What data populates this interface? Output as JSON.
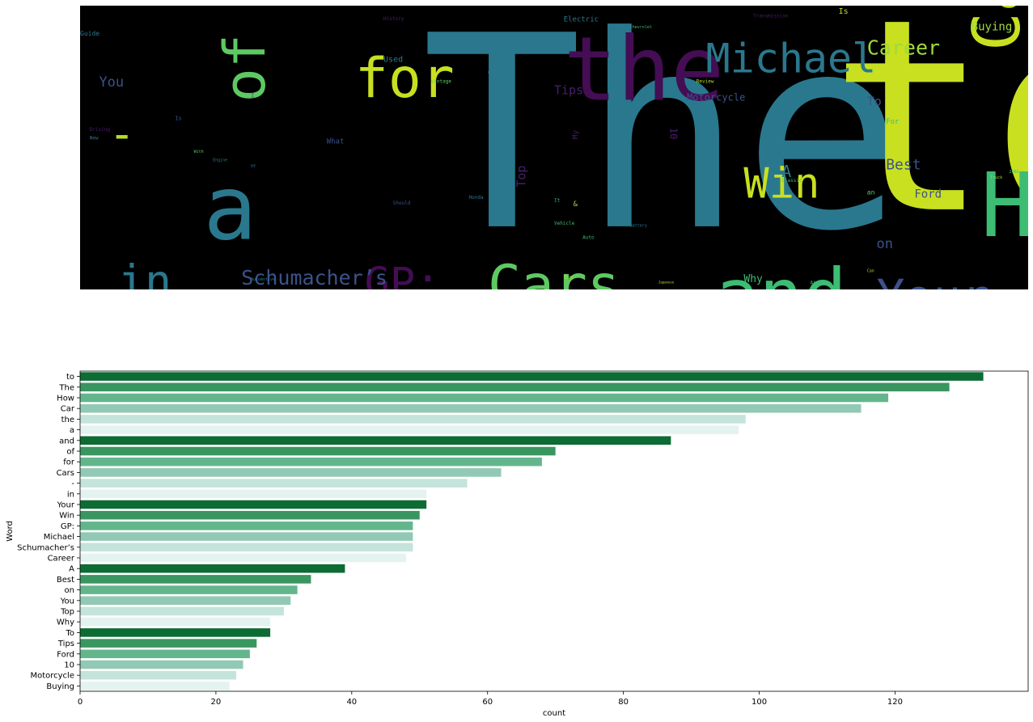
{
  "chart_data": [
    {
      "type": "wordcloud",
      "background": "#000000",
      "palette": "viridis",
      "words": [
        {
          "text": "The",
          "x": 36,
          "y": 8,
          "size": 330,
          "rotate": 0,
          "color": "#2a788e"
        },
        {
          "text": "to",
          "x": 79,
          "y": 2,
          "size": 330,
          "rotate": 0,
          "color": "#c8e020"
        },
        {
          "text": "How",
          "x": 95,
          "y": 58,
          "size": 110,
          "rotate": 0,
          "color": "#3dbc74"
        },
        {
          "text": "Car",
          "x": 94,
          "y": 16,
          "size": 80,
          "rotate": -90,
          "color": "#c8e020"
        },
        {
          "text": "the",
          "x": 51,
          "y": 10,
          "size": 110,
          "rotate": 0,
          "color": "#440d54"
        },
        {
          "text": "a",
          "x": 13,
          "y": 59,
          "size": 110,
          "rotate": 0,
          "color": "#2a788e"
        },
        {
          "text": "and",
          "x": 67,
          "y": 92,
          "size": 90,
          "rotate": 0,
          "color": "#3dbc74"
        },
        {
          "text": "of",
          "x": 15,
          "y": 34,
          "size": 70,
          "rotate": -90,
          "color": "#5ec962"
        },
        {
          "text": "for",
          "x": 29,
          "y": 18,
          "size": 68,
          "rotate": 0,
          "color": "#c8e020"
        },
        {
          "text": "Cars",
          "x": 43,
          "y": 91,
          "size": 68,
          "rotate": 0,
          "color": "#5ec962"
        },
        {
          "text": "-",
          "x": 3,
          "y": 39,
          "size": 55,
          "rotate": 0,
          "color": "#b5de2b"
        },
        {
          "text": "in",
          "x": 4,
          "y": 91,
          "size": 55,
          "rotate": 0,
          "color": "#2a788e"
        },
        {
          "text": "Your",
          "x": 84,
          "y": 96,
          "size": 58,
          "rotate": 0,
          "color": "#3b528b"
        },
        {
          "text": "Win",
          "x": 70,
          "y": 57,
          "size": 52,
          "rotate": 0,
          "color": "#c8e020"
        },
        {
          "text": "GP:",
          "x": 30,
          "y": 92,
          "size": 52,
          "rotate": 0,
          "color": "#440d54"
        },
        {
          "text": "Michael",
          "x": 66,
          "y": 13,
          "size": 50,
          "rotate": 0,
          "color": "#2a788e"
        },
        {
          "text": "Schumacher’s",
          "x": 17,
          "y": 93,
          "size": 25,
          "rotate": 0,
          "color": "#3b528b"
        },
        {
          "text": "Career",
          "x": 83,
          "y": 12,
          "size": 25,
          "rotate": 0,
          "color": "#a0da39"
        },
        {
          "text": "Buying",
          "x": 94,
          "y": 6,
          "size": 14,
          "rotate": 0,
          "color": "#a0da39"
        },
        {
          "text": "You",
          "x": 2,
          "y": 25,
          "size": 17,
          "rotate": 0,
          "color": "#3b528b"
        },
        {
          "text": "Tips",
          "x": 50,
          "y": 28,
          "size": 15,
          "rotate": 0,
          "color": "#481f70"
        },
        {
          "text": "Motorcycle",
          "x": 64,
          "y": 31,
          "size": 12,
          "rotate": 0,
          "color": "#3b528b"
        },
        {
          "text": "To",
          "x": 83,
          "y": 32,
          "size": 15,
          "rotate": 0,
          "color": "#3b528b"
        },
        {
          "text": "Best",
          "x": 85,
          "y": 54,
          "size": 18,
          "rotate": 0,
          "color": "#3b528b"
        },
        {
          "text": "A",
          "x": 74,
          "y": 56,
          "size": 20,
          "rotate": 0,
          "color": "#2a788e"
        },
        {
          "text": "Ford",
          "x": 88,
          "y": 65,
          "size": 14,
          "rotate": 0,
          "color": "#3b528b"
        },
        {
          "text": "on",
          "x": 84,
          "y": 82,
          "size": 17,
          "rotate": 0,
          "color": "#3b528b"
        },
        {
          "text": "Top",
          "x": 46,
          "y": 64,
          "size": 15,
          "rotate": -90,
          "color": "#481f70"
        },
        {
          "text": "Why",
          "x": 70,
          "y": 95,
          "size": 13,
          "rotate": 0,
          "color": "#3dbc74"
        },
        {
          "text": "10",
          "x": 63,
          "y": 43,
          "size": 12,
          "rotate": 90,
          "color": "#481f70"
        },
        {
          "text": "Is",
          "x": 80,
          "y": 1,
          "size": 10,
          "rotate": 0,
          "color": "#b5de2b"
        },
        {
          "text": "Used",
          "x": 32,
          "y": 18,
          "size": 10,
          "rotate": 0,
          "color": "#2a788e"
        },
        {
          "text": "Electric",
          "x": 51,
          "y": 4,
          "size": 9,
          "rotate": 0,
          "color": "#2a788e"
        },
        {
          "text": "Guide",
          "x": 0,
          "y": 9,
          "size": 8,
          "rotate": 0,
          "color": "#2a788e"
        },
        {
          "text": "Review",
          "x": 65,
          "y": 26,
          "size": 6,
          "rotate": 0,
          "color": "#b5de2b"
        },
        {
          "text": "Vintage",
          "x": 37,
          "y": 26,
          "size": 6,
          "rotate": 0,
          "color": "#5ec962"
        },
        {
          "text": "Change",
          "x": 43,
          "y": 23,
          "size": 6,
          "rotate": 0,
          "color": "#2a788e"
        },
        {
          "text": "What",
          "x": 26,
          "y": 47,
          "size": 9,
          "rotate": 0,
          "color": "#3b528b"
        },
        {
          "text": "For",
          "x": 85,
          "y": 40,
          "size": 9,
          "rotate": 0,
          "color": "#3dbc74"
        },
        {
          "text": "My",
          "x": 52,
          "y": 47,
          "size": 9,
          "rotate": -90,
          "color": "#481f70"
        },
        {
          "text": "Classic",
          "x": 74,
          "y": 61,
          "size": 6,
          "rotate": 0,
          "color": "#3dbc74"
        },
        {
          "text": "an",
          "x": 83,
          "y": 65,
          "size": 8,
          "rotate": 0,
          "color": "#5ec962"
        },
        {
          "text": "Honda",
          "x": 41,
          "y": 67,
          "size": 6,
          "rotate": 0,
          "color": "#2a788e"
        },
        {
          "text": "It",
          "x": 50,
          "y": 68,
          "size": 6,
          "rotate": 0,
          "color": "#3dbc74"
        },
        {
          "text": "&",
          "x": 52,
          "y": 69,
          "size": 9,
          "rotate": 0,
          "color": "#a0da39"
        },
        {
          "text": "Should",
          "x": 33,
          "y": 69,
          "size": 6,
          "rotate": 0,
          "color": "#3b528b"
        },
        {
          "text": "Vehicle",
          "x": 50,
          "y": 76,
          "size": 6,
          "rotate": 0,
          "color": "#3dbc74"
        },
        {
          "text": "Battery",
          "x": 58,
          "y": 77,
          "size": 5,
          "rotate": 0,
          "color": "#2a788e"
        },
        {
          "text": "Auto",
          "x": 53,
          "y": 81,
          "size": 6,
          "rotate": 0,
          "color": "#3dbc74"
        },
        {
          "text": "Buy",
          "x": 51,
          "y": 95,
          "size": 7,
          "rotate": 0,
          "color": "#a0da39"
        },
        {
          "text": "Air",
          "x": 77,
          "y": 97,
          "size": 6,
          "rotate": 0,
          "color": "#3dbc74"
        },
        {
          "text": "Can",
          "x": 83,
          "y": 93,
          "size": 5,
          "rotate": 0,
          "color": "#a0da39"
        },
        {
          "text": "Driving",
          "x": 1,
          "y": 43,
          "size": 6,
          "rotate": 0,
          "color": "#481f70"
        },
        {
          "text": "New",
          "x": 1,
          "y": 46,
          "size": 6,
          "rotate": 0,
          "color": "#2a788e"
        },
        {
          "text": "History",
          "x": 32,
          "y": 4,
          "size": 6,
          "rotate": 0,
          "color": "#481f70"
        },
        {
          "text": "Transmission",
          "x": 71,
          "y": 3,
          "size": 6,
          "rotate": 0,
          "color": "#481f70"
        },
        {
          "text": "Chevrolet",
          "x": 58,
          "y": 7,
          "size": 5,
          "rotate": 0,
          "color": "#3dbc74"
        },
        {
          "text": "Engine",
          "x": 14,
          "y": 54,
          "size": 5,
          "rotate": 0,
          "color": "#2a788e"
        },
        {
          "text": "With",
          "x": 12,
          "y": 51,
          "size": 5,
          "rotate": 0,
          "color": "#5ec962"
        },
        {
          "text": "Of",
          "x": 18,
          "y": 56,
          "size": 5,
          "rotate": 0,
          "color": "#2a788e"
        },
        {
          "text": "Is",
          "x": 10,
          "y": 39,
          "size": 7,
          "rotate": 0,
          "color": "#3b528b"
        },
        {
          "text": "I",
          "x": 18,
          "y": 31,
          "size": 7,
          "rotate": 0,
          "color": "#3b528b"
        },
        {
          "text": "Automotive",
          "x": 18,
          "y": 96,
          "size": 5,
          "rotate": 0,
          "color": "#2a788e"
        },
        {
          "text": "Truck",
          "x": 96,
          "y": 60,
          "size": 5,
          "rotate": 0,
          "color": "#a0da39"
        },
        {
          "text": "Japanese",
          "x": 61,
          "y": 97,
          "size": 4,
          "rotate": 0,
          "color": "#b5de2b"
        },
        {
          "text": "2002",
          "x": 98,
          "y": 58,
          "size": 5,
          "rotate": 0,
          "color": "#3dbc74"
        }
      ]
    },
    {
      "type": "bar",
      "orientation": "horizontal",
      "ylabel": "Word",
      "xlabel": "count",
      "xlim": [
        0,
        139.6
      ],
      "xticks": [
        0,
        20,
        40,
        60,
        80,
        100,
        120
      ],
      "grid": false,
      "palette": [
        "#0d6b34",
        "#3a9660",
        "#63b68c",
        "#91c9b4",
        "#c4e4db",
        "#e4f3f0"
      ],
      "categories": [
        "to",
        "The",
        "How",
        "Car",
        "the",
        "a",
        "and",
        "of",
        "for",
        "Cars",
        "-",
        "in",
        "Your",
        "Win",
        "GP:",
        "Michael",
        "Schumacher’s",
        "Career",
        "A",
        "Best",
        "on",
        "You",
        "Top",
        "Why",
        "To",
        "Tips",
        "Ford",
        "10",
        "Motorcycle",
        "Buying"
      ],
      "values": [
        133,
        128,
        119,
        115,
        98,
        97,
        87,
        70,
        68,
        62,
        57,
        51,
        51,
        50,
        49,
        49,
        49,
        48,
        39,
        34,
        32,
        31,
        30,
        28,
        28,
        26,
        25,
        24,
        23,
        22
      ]
    }
  ]
}
